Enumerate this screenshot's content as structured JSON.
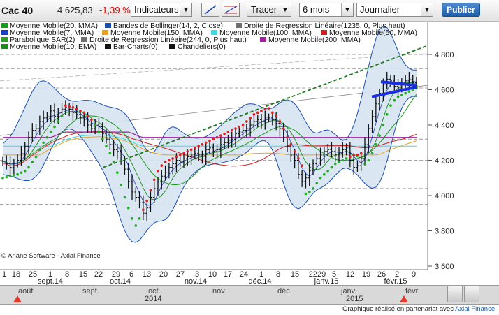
{
  "header": {
    "ticker": "Cac 40",
    "price": "4 625,83",
    "change": "-1,39 %",
    "indicators_label": "Indicateurs",
    "draw_label": "Tracer",
    "period_label": "6 mois",
    "interval_label": "Journalier",
    "publish_label": "Publier"
  },
  "legend": [
    {
      "label": "Moyenne Mobile(20, MMA)",
      "color": "#1a9a1a"
    },
    {
      "label": "Bandes de Bollinger(14, 2, Close)",
      "color": "#1a4fb0"
    },
    {
      "label": "Droite de Regression Linéaire(1235, 0, Plus haut)",
      "color": "#6e6e6e"
    },
    {
      "label": "Moyenne Mobile(7, MMA)",
      "color": "#1a3fc0"
    },
    {
      "label": "Moyenne Mobile(150, MMA)",
      "color": "#e8a020"
    },
    {
      "label": "Moyenne Mobile(100, MMA)",
      "color": "#40d8e0"
    },
    {
      "label": "Moyenne Mobile(50, MMA)",
      "color": "#d02020"
    },
    {
      "label": "Parabolique SAR(2)",
      "color": "#2aa02a"
    },
    {
      "label": "Droite de Regression Linéaire(244, 0, Plus haut)",
      "color": "#6e6e6e"
    },
    {
      "label": "Moyenne Mobile(200, MMA)",
      "color": "#a020a0"
    },
    {
      "label": "Moyenne Mobile(10, EMA)",
      "color": "#1a8a1a"
    },
    {
      "label": "Bar-Charts(0)",
      "color": "#111111"
    },
    {
      "label": "Chandeliers(0)",
      "color": "#111111"
    }
  ],
  "credit": "© Ariane Software - Axial Finance",
  "chart_data": {
    "type": "line",
    "y_ticks": [
      "4 800",
      "4 600",
      "4 400",
      "4 200",
      "4 000",
      "3 800",
      "3 600"
    ],
    "y_tick_values": [
      4800,
      4600,
      4400,
      4200,
      4000,
      3800,
      3600
    ],
    "ylim": [
      3600,
      4850
    ],
    "day_labels": [
      "1",
      "18",
      "25",
      "1",
      "8",
      "15",
      "22",
      "29",
      "6",
      "13",
      "20",
      "27",
      "3",
      "10",
      "17",
      "24",
      "1",
      "8",
      "15",
      "2229",
      "5",
      "12",
      "19",
      "26",
      "2",
      "9"
    ],
    "month_labels": [
      "sept.14",
      "oct.14",
      "nov.14",
      "déc.14",
      "janv.15",
      "févr.15"
    ],
    "close": [
      4195,
      4180,
      4160,
      4185,
      4200,
      4240,
      4280,
      4330,
      4370,
      4380,
      4420,
      4440,
      4450,
      4480,
      4450,
      4470,
      4490,
      4500,
      4490,
      4470,
      4460,
      4440,
      4430,
      4400,
      4380,
      4400,
      4390,
      4350,
      4320,
      4290,
      4260,
      4250,
      4200,
      4150,
      4080,
      4020,
      3990,
      3960,
      3900,
      3930,
      3990,
      4040,
      4080,
      4110,
      4130,
      4160,
      4180,
      4200,
      4190,
      4210,
      4220,
      4230,
      4240,
      4230,
      4220,
      4260,
      4270,
      4250,
      4260,
      4290,
      4300,
      4310,
      4320,
      4350,
      4360,
      4370,
      4380,
      4400,
      4420,
      4430,
      4420,
      4440,
      4440,
      4430,
      4410,
      4380,
      4330,
      4280,
      4230,
      4200,
      4120,
      4080,
      4100,
      4140,
      4180,
      4210,
      4230,
      4250,
      4260,
      4250,
      4230,
      4240,
      4260,
      4270,
      4200,
      4160,
      4170,
      4210,
      4290,
      4380,
      4450,
      4520,
      4580,
      4630,
      4660,
      4650,
      4620,
      4610,
      4640,
      4650,
      4660,
      4640,
      4626
    ],
    "parabolic_sar": [
      4100,
      4105,
      4110,
      4115,
      4120,
      4130,
      4140,
      4160,
      4190,
      4220,
      4260,
      4300,
      4330,
      4360,
      4390,
      4420,
      4450,
      4510,
      4505,
      4500,
      4490,
      4480,
      4470,
      4450,
      4430,
      4400,
      4360,
      4320,
      4280,
      4240,
      4190,
      4130,
      4060,
      3990,
      3930,
      3870,
      3830,
      3870,
      3920,
      3970,
      4030,
      4090,
      4140,
      4170,
      4190,
      4200,
      4210,
      4220,
      4230,
      4240,
      4250,
      4260,
      4270,
      4280,
      4290,
      4300,
      4310,
      4320,
      4330,
      4340,
      4350,
      4360,
      4370,
      4380,
      4390,
      4400,
      4420,
      4440,
      4460,
      4470,
      4480,
      4490,
      4495,
      4470,
      4450,
      4420,
      4380,
      4330,
      4290,
      4250,
      4210,
      4170,
      4010,
      4020,
      4040,
      4070,
      4100,
      4120,
      4140,
      4160,
      4180,
      4190,
      4200,
      4210,
      4220,
      4230,
      4230,
      4240,
      4180,
      4200,
      4240,
      4290,
      4340,
      4400,
      4460,
      4510,
      4540,
      4560,
      4570,
      4580,
      4590,
      4600,
      4610
    ],
    "regression_line_1235": {
      "start": 4340,
      "end": 4625
    },
    "regression_line_244": {
      "start": 4160,
      "end": 4840
    },
    "horizontal_levels": [
      4800,
      4720,
      4610,
      4320,
      4200,
      4040,
      3950
    ],
    "annotations": {
      "triangle": [
        4580,
        4620,
        4690
      ]
    }
  },
  "nav": {
    "months": [
      "août",
      "sept.",
      "oct.",
      "nov.",
      "déc.",
      "janv.",
      "févr."
    ],
    "year_left": "2014",
    "year_right": "2015"
  },
  "footer": {
    "text": "Graphique réalisé en partenariat avec",
    "link": "Axial Finance"
  }
}
